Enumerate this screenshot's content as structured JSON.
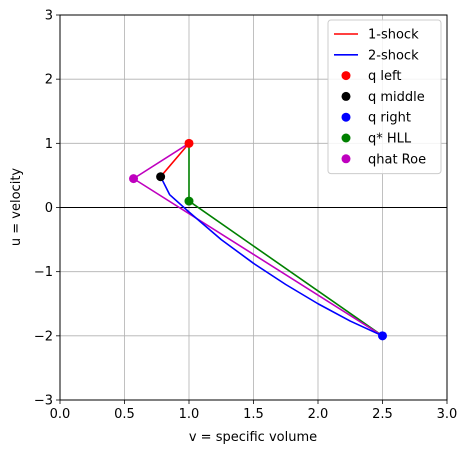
{
  "chart_data": {
    "type": "line",
    "xlabel": "v = specific volume",
    "ylabel": "u = velocity",
    "xlim": [
      0,
      3
    ],
    "ylim": [
      -3,
      3
    ],
    "x_ticks": [
      "0.0",
      "0.5",
      "1.0",
      "1.5",
      "2.0",
      "2.5",
      "3.0"
    ],
    "y_ticks": [
      "−3",
      "−2",
      "−1",
      "0",
      "1",
      "2",
      "3"
    ],
    "grid": true,
    "zero_line": true,
    "legend_position": "top-right",
    "series": [
      {
        "name": "1-shock",
        "kind": "line",
        "color": "#ff0000",
        "points": [
          [
            1.0,
            1.0
          ],
          [
            0.89,
            0.74
          ],
          [
            0.78,
            0.48
          ]
        ]
      },
      {
        "name": "2-shock",
        "kind": "line",
        "color": "#0000ff",
        "points": [
          [
            0.78,
            0.48
          ],
          [
            0.85,
            0.2
          ],
          [
            1.0,
            -0.07
          ],
          [
            1.25,
            -0.5
          ],
          [
            1.5,
            -0.87
          ],
          [
            1.75,
            -1.2
          ],
          [
            2.0,
            -1.5
          ],
          [
            2.25,
            -1.77
          ],
          [
            2.5,
            -2.0
          ]
        ]
      },
      {
        "name": "q left",
        "kind": "point",
        "color": "#ff0000",
        "points": [
          [
            1.0,
            1.0
          ]
        ]
      },
      {
        "name": "q middle",
        "kind": "point",
        "color": "#000000",
        "points": [
          [
            0.78,
            0.48
          ]
        ]
      },
      {
        "name": "q right",
        "kind": "point",
        "color": "#0000ff",
        "points": [
          [
            2.5,
            -2.0
          ]
        ]
      },
      {
        "name": "q* HLL",
        "kind": "point",
        "color": "#008000",
        "points": [
          [
            1.0,
            0.1
          ]
        ]
      },
      {
        "name": "qhat Roe",
        "kind": "point",
        "color": "#bf00bf",
        "points": [
          [
            0.57,
            0.45
          ]
        ]
      }
    ],
    "hll_lines": {
      "color": "#008000",
      "points": [
        [
          1.0,
          1.0
        ],
        [
          1.0,
          0.1
        ],
        [
          2.5,
          -2.0
        ]
      ]
    },
    "roe_lines": {
      "color": "#bf00bf",
      "points": [
        [
          1.0,
          1.0
        ],
        [
          0.57,
          0.45
        ],
        [
          2.5,
          -2.0
        ]
      ]
    },
    "legend": [
      {
        "label": "1-shock",
        "marker": "line",
        "color": "#ff0000"
      },
      {
        "label": "2-shock",
        "marker": "line",
        "color": "#0000ff"
      },
      {
        "label": "q left",
        "marker": "dot",
        "color": "#ff0000"
      },
      {
        "label": "q middle",
        "marker": "dot",
        "color": "#000000"
      },
      {
        "label": "q right",
        "marker": "dot",
        "color": "#0000ff"
      },
      {
        "label": "q* HLL",
        "marker": "dot",
        "color": "#008000"
      },
      {
        "label": "qhat Roe",
        "marker": "dot",
        "color": "#bf00bf"
      }
    ]
  }
}
